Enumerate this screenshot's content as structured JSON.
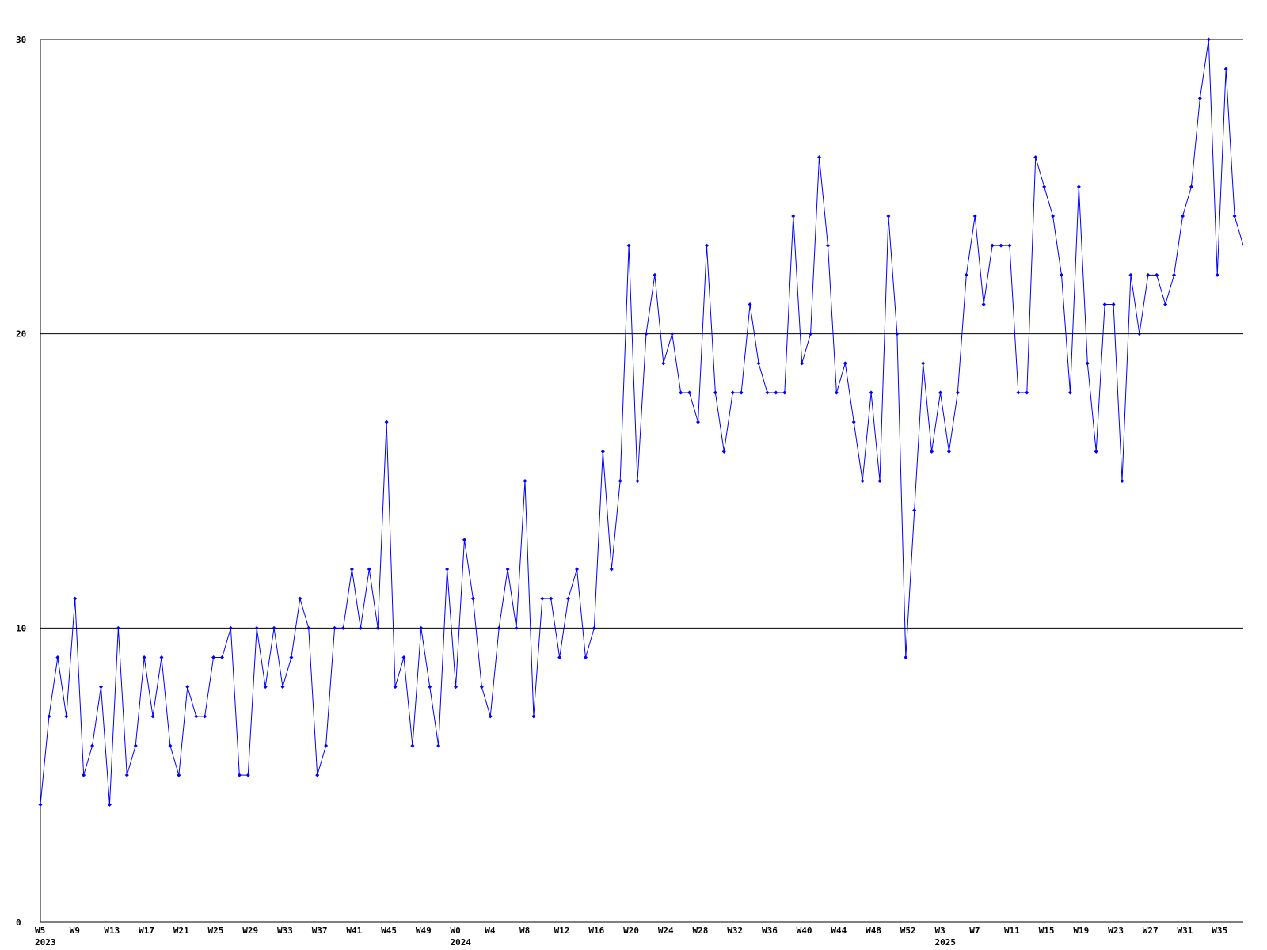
{
  "chart_data": {
    "type": "line",
    "categories": [
      "W5",
      null,
      null,
      null,
      "W9",
      null,
      null,
      null,
      "W13",
      null,
      null,
      null,
      "W17",
      null,
      null,
      null,
      "W21",
      null,
      null,
      null,
      "W25",
      null,
      null,
      null,
      "W29",
      null,
      null,
      null,
      "W33",
      null,
      null,
      null,
      "W37",
      null,
      null,
      null,
      "W41",
      null,
      null,
      null,
      "W45",
      null,
      null,
      null,
      "W49",
      null,
      null,
      null,
      "W0",
      null,
      null,
      null,
      "W4",
      null,
      null,
      null,
      "W8",
      null,
      null,
      null,
      "W12",
      null,
      null,
      null,
      "W16",
      null,
      null,
      null,
      "W20",
      null,
      null,
      null,
      "W24",
      null,
      null,
      null,
      "W28",
      null,
      null,
      null,
      "W32",
      null,
      null,
      null,
      "W36",
      null,
      null,
      null,
      "W40",
      null,
      null,
      null,
      "W44",
      null,
      null,
      null,
      "W48",
      null,
      null,
      null,
      "W52",
      null,
      null,
      null,
      "W3",
      null,
      null,
      null,
      "W7",
      null,
      null,
      null,
      "W11",
      null,
      null,
      null,
      "W15",
      null,
      null,
      null,
      "W19",
      null,
      null,
      null,
      "W23",
      null,
      null,
      null,
      "W27",
      null,
      null,
      null,
      "W31",
      null,
      null,
      null,
      "W35",
      null,
      null,
      null
    ],
    "years": [
      "2023",
      "2024",
      "2025"
    ],
    "series": [
      {
        "color": "#0000ff",
        "values": [
          4,
          7,
          9,
          7,
          11,
          5,
          6,
          8,
          4,
          10,
          5,
          6,
          9,
          7,
          9,
          6,
          5,
          8,
          7,
          7,
          9,
          9,
          10,
          5,
          5,
          10,
          8,
          10,
          8,
          9,
          11,
          10,
          5,
          6,
          10,
          10,
          12,
          10,
          12,
          10,
          17,
          8,
          9,
          6,
          10,
          8,
          6,
          12,
          8,
          13,
          11,
          8,
          7,
          10,
          12,
          10,
          15,
          7,
          11,
          11,
          9,
          11,
          12,
          9,
          10,
          16,
          12,
          15,
          23,
          15,
          20,
          22,
          19,
          20,
          18,
          18,
          17,
          23,
          18,
          16,
          18,
          18,
          21,
          19,
          18,
          18,
          18,
          24,
          19,
          20,
          26,
          23,
          18,
          19,
          17,
          15,
          18,
          15,
          24,
          20,
          9,
          14,
          19,
          16,
          18,
          16,
          18,
          22,
          24,
          21,
          23,
          23,
          23,
          18,
          18,
          26,
          25,
          24,
          22,
          18,
          25,
          19,
          16,
          21,
          21,
          15,
          22,
          20,
          22,
          22,
          21,
          22,
          24,
          25,
          28,
          30,
          22,
          29,
          24,
          23
        ]
      }
    ],
    "ylim": [
      0,
      30
    ],
    "yticks": [
      0,
      10,
      20,
      30
    ],
    "grid": true
  }
}
